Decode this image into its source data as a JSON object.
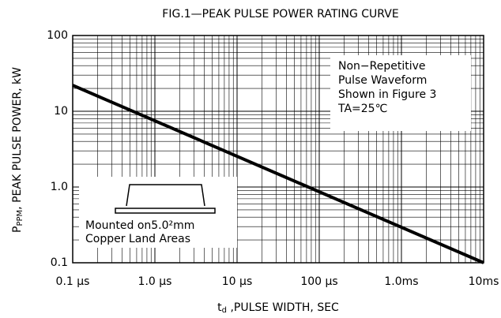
{
  "chart_data": {
    "type": "line",
    "title": "FIG.1—PEAK PULSE POWER RATING CURVE",
    "y_label": {
      "symbol": "P",
      "subscript": "PPM",
      "text": ", PEAK PULSE POWER, kW"
    },
    "x_label": {
      "symbol": "t",
      "subscript": "d",
      "text": " ,PULSE WIDTH, SEC"
    },
    "x_log": true,
    "y_log": true,
    "grid": true,
    "minor_grid": true,
    "xlim": [
      1e-07,
      0.01
    ],
    "xticks": [
      {
        "value": 1e-07,
        "label": "0.1 µs"
      },
      {
        "value": 1e-06,
        "label": "1.0 µs"
      },
      {
        "value": 1e-05,
        "label": "10 µs"
      },
      {
        "value": 0.0001,
        "label": "100 µs"
      },
      {
        "value": 0.001,
        "label": "1.0ms"
      },
      {
        "value": 0.01,
        "label": "10ms"
      }
    ],
    "ylim": [
      0.1,
      100
    ],
    "yticks": [
      0.1,
      {
        "value": 1,
        "label": "1.0"
      },
      10,
      100
    ],
    "series": [
      {
        "color": "#000000",
        "x": [
          1e-07,
          0.01
        ],
        "values": [
          22,
          0.1
        ]
      }
    ],
    "annotations": {
      "waveform": [
        "Non−Repetitive",
        "Pulse Waveform",
        "Shown in Figure 3",
        "TA=25℃"
      ],
      "mounting": [
        "Mounted on5.0²mm",
        "Copper Land Areas"
      ]
    }
  }
}
